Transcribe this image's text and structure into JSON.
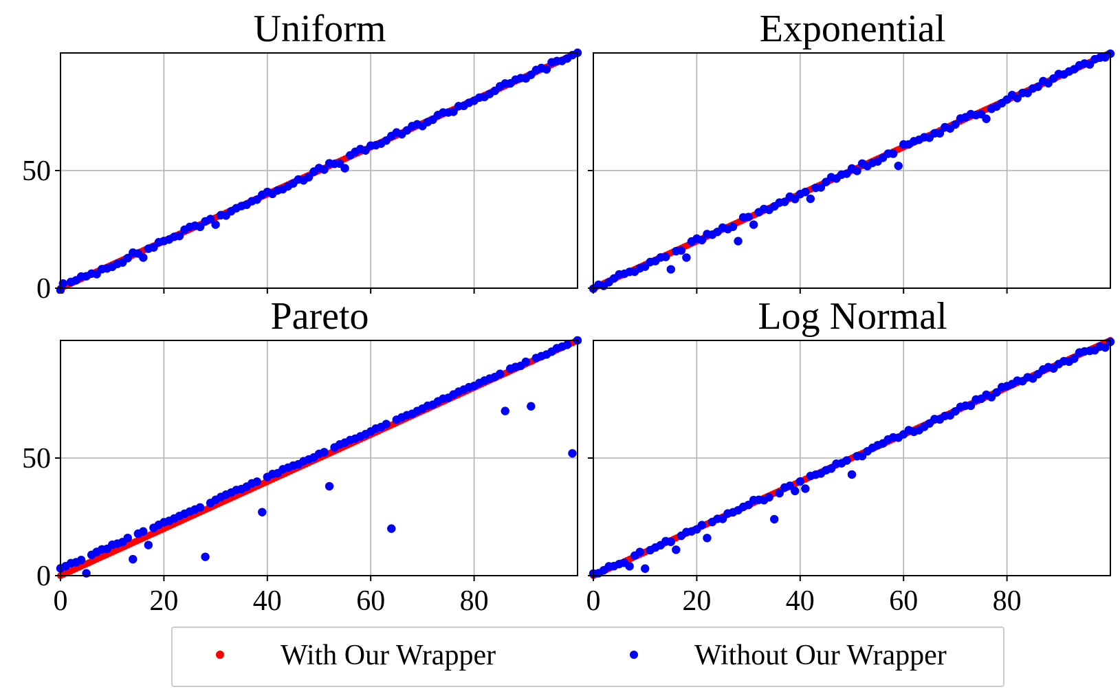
{
  "legend": {
    "items": [
      {
        "label": "With Our Wrapper",
        "color": "#ff0000"
      },
      {
        "label": "Without Our Wrapper",
        "color": "#0000ff"
      }
    ]
  },
  "chart_data": [
    {
      "type": "scatter",
      "title": "Uniform",
      "xlim": [
        0,
        100
      ],
      "ylim": [
        0,
        100
      ],
      "xticks": [
        0,
        20,
        40,
        60,
        80
      ],
      "yticks": [
        0,
        50
      ],
      "show_xticklabels": false,
      "show_yticklabels": true,
      "grid": true,
      "series": [
        {
          "name": "With Our Wrapper",
          "color": "#ff0000",
          "mode": "identity",
          "x_range": [
            0,
            100
          ],
          "step": 0.5
        },
        {
          "name": "Without Our Wrapper",
          "color": "#0000ff",
          "mode": "near-identity",
          "x_range": [
            0,
            100
          ],
          "step": 1,
          "outliers": [
            [
              0.5,
              2
            ],
            [
              55,
              51
            ],
            [
              30,
              27
            ],
            [
              16,
              13
            ]
          ]
        }
      ]
    },
    {
      "type": "scatter",
      "title": "Exponential",
      "xlim": [
        0,
        100
      ],
      "ylim": [
        0,
        100
      ],
      "xticks": [
        0,
        20,
        40,
        60,
        80
      ],
      "yticks": [
        0,
        50
      ],
      "show_xticklabels": false,
      "show_yticklabels": false,
      "grid": true,
      "series": [
        {
          "name": "With Our Wrapper",
          "color": "#ff0000",
          "mode": "identity",
          "x_range": [
            0,
            100
          ],
          "step": 0.5
        },
        {
          "name": "Without Our Wrapper",
          "color": "#0000ff",
          "mode": "near-identity",
          "x_range": [
            0,
            100
          ],
          "step": 1,
          "outliers": [
            [
              15,
              8
            ],
            [
              18,
              13
            ],
            [
              28,
              20
            ],
            [
              31,
              27
            ],
            [
              42,
              38
            ],
            [
              59,
              52
            ],
            [
              76,
              72
            ],
            [
              8,
              7
            ],
            [
              2,
              1
            ]
          ]
        }
      ]
    },
    {
      "type": "scatter",
      "title": "Pareto",
      "xlim": [
        0,
        100
      ],
      "ylim": [
        0,
        100
      ],
      "xticks": [
        0,
        20,
        40,
        60,
        80
      ],
      "yticks": [
        0,
        50
      ],
      "show_xticklabels": true,
      "show_yticklabels": true,
      "grid": true,
      "series": [
        {
          "name": "With Our Wrapper",
          "color": "#ff0000",
          "mode": "identity",
          "x_range": [
            0,
            100
          ],
          "step": 0.5
        },
        {
          "name": "Without Our Wrapper",
          "color": "#0000ff",
          "mode": "offset",
          "offset": 3,
          "x_range": [
            0,
            100
          ],
          "step": 1,
          "outliers": [
            [
              5,
              1
            ],
            [
              14,
              7
            ],
            [
              17,
              13
            ],
            [
              28,
              8
            ],
            [
              39,
              27
            ],
            [
              52,
              38
            ],
            [
              64,
              20
            ],
            [
              86,
              70
            ],
            [
              91,
              72
            ],
            [
              99,
              52
            ]
          ]
        }
      ]
    },
    {
      "type": "scatter",
      "title": "Log Normal",
      "xlim": [
        0,
        100
      ],
      "ylim": [
        0,
        100
      ],
      "xticks": [
        0,
        20,
        40,
        60,
        80
      ],
      "yticks": [
        0,
        50
      ],
      "show_xticklabels": true,
      "show_yticklabels": false,
      "grid": true,
      "series": [
        {
          "name": "With Our Wrapper",
          "color": "#ff0000",
          "mode": "identity",
          "x_range": [
            0,
            100
          ],
          "step": 0.5
        },
        {
          "name": "Without Our Wrapper",
          "color": "#0000ff",
          "mode": "near-identity",
          "x_range": [
            0,
            100
          ],
          "step": 1,
          "outliers": [
            [
              7,
              4
            ],
            [
              10,
              3
            ],
            [
              16,
              11
            ],
            [
              22,
              16
            ],
            [
              35,
              24
            ],
            [
              39,
              36
            ],
            [
              41,
              37
            ],
            [
              50,
              43
            ],
            [
              99,
              97
            ]
          ]
        }
      ]
    }
  ]
}
